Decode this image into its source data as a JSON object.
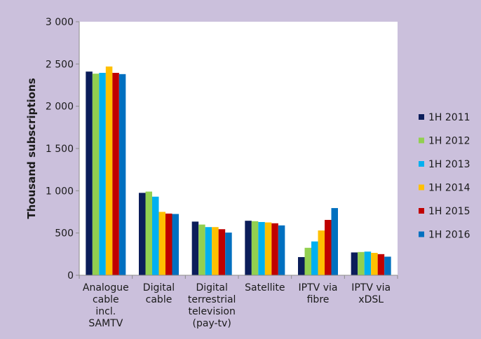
{
  "chart_data": {
    "type": "bar",
    "title": "",
    "xlabel": "",
    "ylabel": "Thousand subscriptions",
    "ylim": [
      0,
      3000
    ],
    "yticks": [
      0,
      500,
      1000,
      1500,
      2000,
      2500,
      3000
    ],
    "ytick_labels": [
      "0",
      "500",
      "1 000",
      "1 500",
      "2 000",
      "2 500",
      "3 000"
    ],
    "grid": false,
    "legend_position": "right",
    "categories": [
      [
        "Analogue",
        "cable",
        "incl.",
        "SAMTV"
      ],
      [
        "Digital",
        "cable"
      ],
      [
        "Digital",
        "terrestrial",
        "television",
        "(pay-tv)"
      ],
      [
        "Satellite"
      ],
      [
        "IPTV via",
        "fibre"
      ],
      [
        "IPTV via",
        "xDSL"
      ]
    ],
    "series": [
      {
        "name": "1H 2011",
        "color": "#0b1d5a",
        "values": [
          2410,
          975,
          635,
          645,
          215,
          270
        ]
      },
      {
        "name": "1H 2012",
        "color": "#92d050",
        "values": [
          2385,
          990,
          600,
          640,
          325,
          275
        ]
      },
      {
        "name": "1H 2013",
        "color": "#00b0f0",
        "values": [
          2395,
          930,
          570,
          630,
          400,
          280
        ]
      },
      {
        "name": "1H 2014",
        "color": "#ffc000",
        "values": [
          2470,
          750,
          570,
          625,
          530,
          265
        ]
      },
      {
        "name": "1H 2015",
        "color": "#c00000",
        "values": [
          2395,
          730,
          545,
          615,
          655,
          250
        ]
      },
      {
        "name": "1H 2016",
        "color": "#0070c0",
        "values": [
          2380,
          725,
          505,
          590,
          795,
          220
        ]
      }
    ]
  }
}
